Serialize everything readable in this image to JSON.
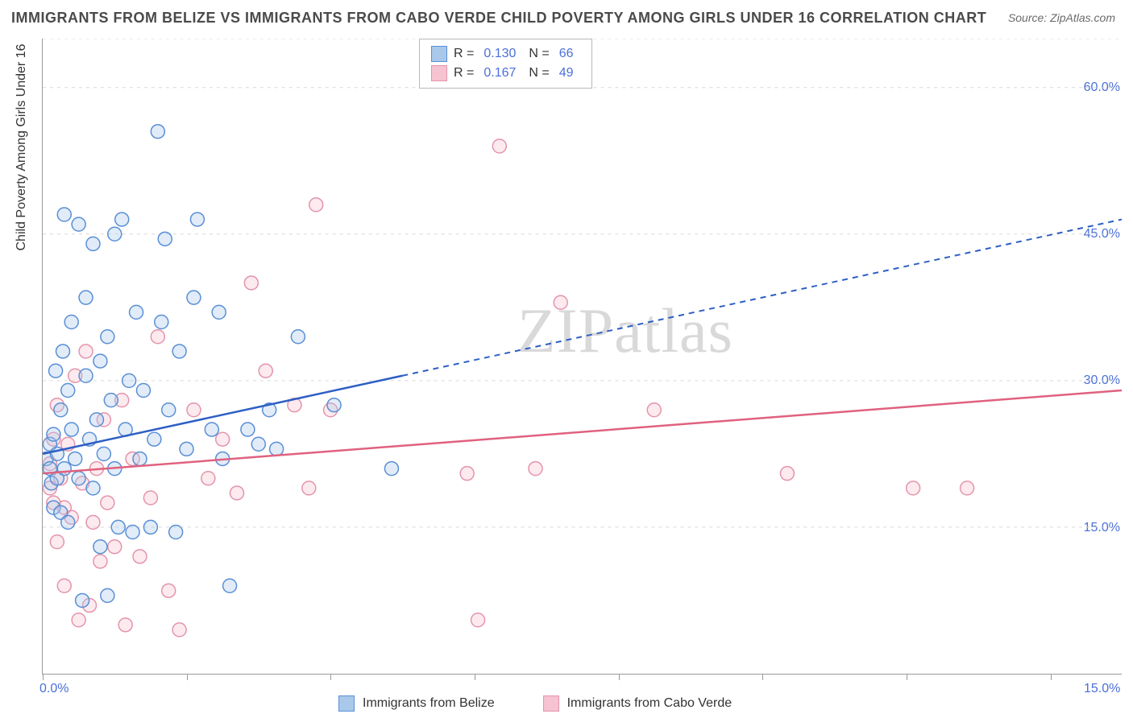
{
  "title": "IMMIGRANTS FROM BELIZE VS IMMIGRANTS FROM CABO VERDE CHILD POVERTY AMONG GIRLS UNDER 16 CORRELATION CHART",
  "source": "Source: ZipAtlas.com",
  "watermark": "ZIPatlas",
  "y_axis_title": "Child Poverty Among Girls Under 16",
  "chart": {
    "type": "scatter-correlation",
    "background_color": "#ffffff",
    "grid_color": "#d8d8d8",
    "axis_color": "#9a9a9a",
    "value_text_color": "#4a6fd8",
    "label_text_color": "#333333",
    "x_domain": [
      0,
      15
    ],
    "y_domain": [
      0,
      65
    ],
    "x_ticks": [
      0,
      2,
      4,
      6,
      8,
      10,
      12,
      14
    ],
    "x_tick_labels": {
      "0": "0.0%",
      "15": "15.0%"
    },
    "y_gridlines": [
      15,
      30,
      45,
      60,
      65
    ],
    "y_tick_labels": {
      "15": "15.0%",
      "30": "30.0%",
      "45": "45.0%",
      "60": "60.0%"
    },
    "marker_radius": 8.5,
    "marker_stroke_width": 1.5,
    "marker_fill_opacity": 0.35,
    "line_width_solid": 2.5,
    "line_width_dash": 2,
    "dash_pattern": "7,6",
    "series": [
      {
        "id": "belize",
        "label": "Immigrants from Belize",
        "color_stroke": "#5a8fd6",
        "color_fill": "#a9c8ea",
        "line_color": "#2e5fc4",
        "R": "0.130",
        "N": "66",
        "trend_solid": [
          [
            0,
            22.5
          ],
          [
            5,
            30.5
          ]
        ],
        "trend_dash": [
          [
            5,
            30.5
          ],
          [
            15,
            46.5
          ]
        ],
        "points": [
          [
            0.05,
            22
          ],
          [
            0.1,
            21
          ],
          [
            0.1,
            23.5
          ],
          [
            0.12,
            19.5
          ],
          [
            0.15,
            24.5
          ],
          [
            0.15,
            17
          ],
          [
            0.18,
            31
          ],
          [
            0.2,
            20
          ],
          [
            0.2,
            22.5
          ],
          [
            0.25,
            27
          ],
          [
            0.25,
            16.5
          ],
          [
            0.28,
            33
          ],
          [
            0.3,
            47
          ],
          [
            0.3,
            21
          ],
          [
            0.35,
            29
          ],
          [
            0.35,
            15.5
          ],
          [
            0.4,
            25
          ],
          [
            0.4,
            36
          ],
          [
            0.45,
            22
          ],
          [
            0.5,
            46
          ],
          [
            0.5,
            20
          ],
          [
            0.55,
            7.5
          ],
          [
            0.6,
            30.5
          ],
          [
            0.6,
            38.5
          ],
          [
            0.65,
            24
          ],
          [
            0.7,
            44
          ],
          [
            0.7,
            19
          ],
          [
            0.75,
            26
          ],
          [
            0.8,
            32
          ],
          [
            0.8,
            13
          ],
          [
            0.85,
            22.5
          ],
          [
            0.9,
            34.5
          ],
          [
            0.9,
            8
          ],
          [
            0.95,
            28
          ],
          [
            1.0,
            45
          ],
          [
            1.0,
            21
          ],
          [
            1.05,
            15
          ],
          [
            1.1,
            46.5
          ],
          [
            1.15,
            25
          ],
          [
            1.2,
            30
          ],
          [
            1.25,
            14.5
          ],
          [
            1.3,
            37
          ],
          [
            1.35,
            22
          ],
          [
            1.4,
            29
          ],
          [
            1.5,
            15
          ],
          [
            1.55,
            24
          ],
          [
            1.6,
            55.5
          ],
          [
            1.65,
            36
          ],
          [
            1.7,
            44.5
          ],
          [
            1.75,
            27
          ],
          [
            1.85,
            14.5
          ],
          [
            1.9,
            33
          ],
          [
            2.0,
            23
          ],
          [
            2.1,
            38.5
          ],
          [
            2.15,
            46.5
          ],
          [
            2.35,
            25
          ],
          [
            2.45,
            37
          ],
          [
            2.5,
            22
          ],
          [
            2.6,
            9
          ],
          [
            2.85,
            25
          ],
          [
            3.0,
            23.5
          ],
          [
            3.15,
            27
          ],
          [
            3.25,
            23
          ],
          [
            3.55,
            34.5
          ],
          [
            4.05,
            27.5
          ],
          [
            4.85,
            21
          ]
        ]
      },
      {
        "id": "cabo_verde",
        "label": "Immigrants from Cabo Verde",
        "color_stroke": "#e494ab",
        "color_fill": "#f5c3d1",
        "line_color": "#e0617f",
        "R": "0.167",
        "N": "49",
        "trend_solid": [
          [
            0,
            20.5
          ],
          [
            15,
            29
          ]
        ],
        "trend_dash": null,
        "points": [
          [
            0.1,
            19
          ],
          [
            0.1,
            21.5
          ],
          [
            0.15,
            17.5
          ],
          [
            0.15,
            24
          ],
          [
            0.2,
            13.5
          ],
          [
            0.2,
            27.5
          ],
          [
            0.25,
            20
          ],
          [
            0.3,
            17
          ],
          [
            0.3,
            9
          ],
          [
            0.35,
            23.5
          ],
          [
            0.4,
            16
          ],
          [
            0.45,
            30.5
          ],
          [
            0.5,
            5.5
          ],
          [
            0.55,
            19.5
          ],
          [
            0.6,
            33
          ],
          [
            0.65,
            7
          ],
          [
            0.7,
            15.5
          ],
          [
            0.75,
            21
          ],
          [
            0.8,
            11.5
          ],
          [
            0.85,
            26
          ],
          [
            0.9,
            17.5
          ],
          [
            1.0,
            13
          ],
          [
            1.1,
            28
          ],
          [
            1.15,
            5
          ],
          [
            1.25,
            22
          ],
          [
            1.35,
            12
          ],
          [
            1.5,
            18
          ],
          [
            1.6,
            34.5
          ],
          [
            1.75,
            8.5
          ],
          [
            1.9,
            4.5
          ],
          [
            2.1,
            27
          ],
          [
            2.3,
            20
          ],
          [
            2.5,
            24
          ],
          [
            2.7,
            18.5
          ],
          [
            2.9,
            40
          ],
          [
            3.1,
            31
          ],
          [
            3.5,
            27.5
          ],
          [
            3.7,
            19
          ],
          [
            3.8,
            48
          ],
          [
            4.0,
            27
          ],
          [
            5.9,
            20.5
          ],
          [
            6.05,
            5.5
          ],
          [
            6.35,
            54
          ],
          [
            6.85,
            21
          ],
          [
            7.2,
            38
          ],
          [
            8.5,
            27
          ],
          [
            10.35,
            20.5
          ],
          [
            12.1,
            19
          ],
          [
            12.85,
            19
          ]
        ]
      }
    ]
  },
  "legend_top": {
    "r_label": "R =",
    "n_label": "N ="
  }
}
